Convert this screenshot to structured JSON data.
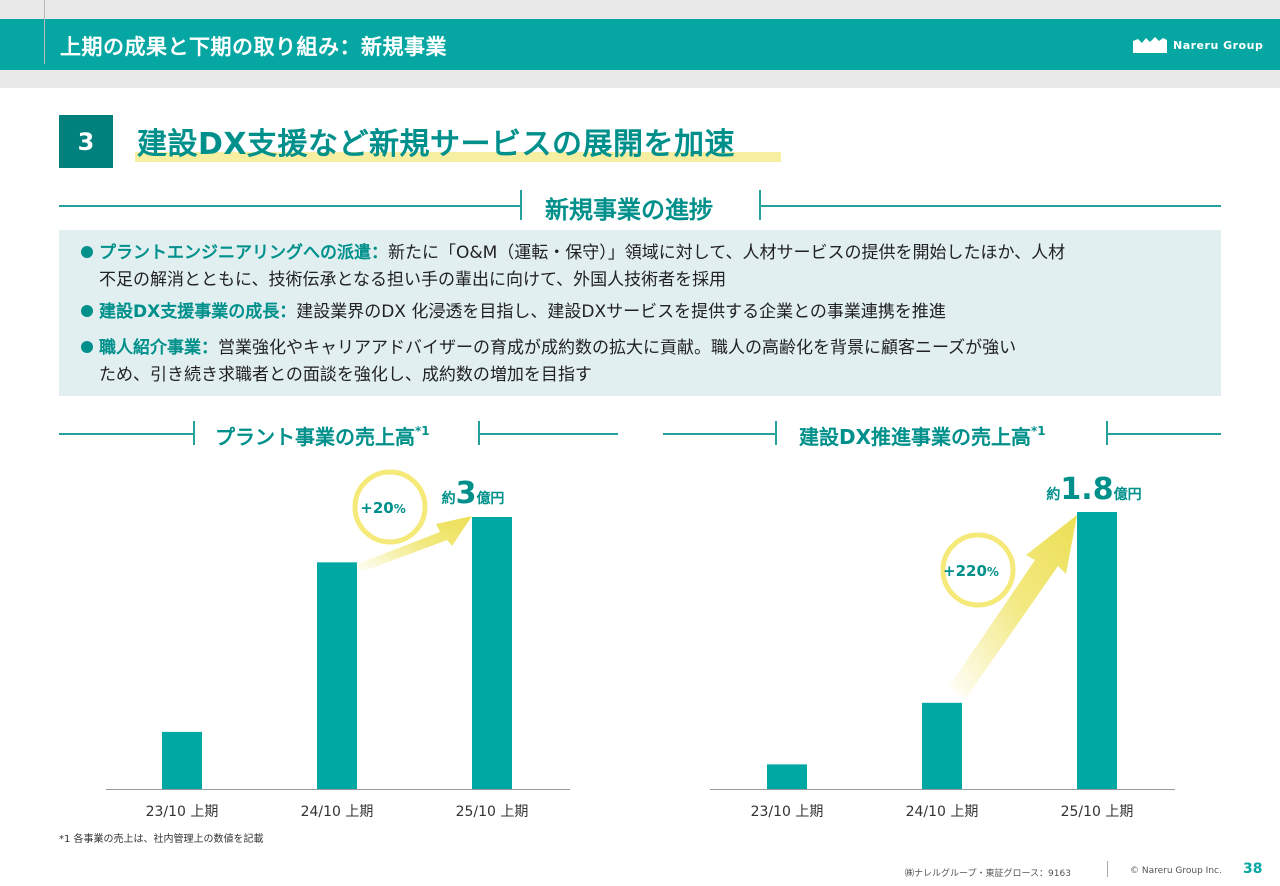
{
  "header": {
    "title": "上期の成果と下期の取り組み：新規事業",
    "logo_text": "Nareru Group"
  },
  "section": {
    "number": "3",
    "heading": "建設DX支援など新規サービスの展開を加速"
  },
  "progress": {
    "title": "新規事業の進捗",
    "bullets": [
      {
        "lead": "プラントエンジニアリングへの派遣：",
        "line1": "新たに「O&M（運転・保守）」領域に対して、人材サービスの提供を開始したほか、人材",
        "line2": "不足の解消とともに、技術伝承となる担い手の輩出に向けて、外国人技術者を採用"
      },
      {
        "lead": "建設DX支援事業の成長：",
        "line1": "建設業界のDX 化浸透を目指し、建設DXサービスを提供する企業との事業連携を推進",
        "line2": ""
      },
      {
        "lead": "職人紹介事業：",
        "line1": "営業強化やキャリアアドバイザーの育成が成約数の拡大に貢献。職人の高齢化を背景に顧客ニーズが強い",
        "line2": "ため、引き続き求職者との面談を強化し、成約数の増加を目指す"
      }
    ]
  },
  "chart_data": [
    {
      "type": "bar",
      "title": "プラント事業の売上高",
      "title_note": "*1",
      "categories": [
        "23/10 上期",
        "24/10 上期",
        "25/10 上期"
      ],
      "values": [
        0.63,
        2.5,
        3.0
      ],
      "value_label": {
        "prefix": "約",
        "number": "3",
        "unit": "億円"
      },
      "growth_label": {
        "number": "+20",
        "unit": "%"
      },
      "ylim": [
        0,
        3.0
      ],
      "colors": {
        "bar": "#00a8a3",
        "arrow": "#f0e468",
        "circle": "#f5e97a"
      }
    },
    {
      "type": "bar",
      "title": "建設DX推進事業の売上高",
      "title_note": "*1",
      "categories": [
        "23/10 上期",
        "24/10 上期",
        "25/10 上期"
      ],
      "values": [
        0.16,
        0.56,
        1.8
      ],
      "value_label": {
        "prefix": "約",
        "number": "1.8",
        "unit": "億円"
      },
      "growth_label": {
        "number": "+220",
        "unit": "%"
      },
      "ylim": [
        0,
        1.8
      ],
      "colors": {
        "bar": "#00a8a3",
        "arrow": "#f0e468",
        "circle": "#f5e97a"
      }
    }
  ],
  "footnote": "*1 各事業の売上は、社内管理上の数値を記載",
  "footer": {
    "company": "㈱ナレルグループ・東証グロース：9163",
    "copyright": "© Nareru Group Inc.",
    "page": "38"
  }
}
